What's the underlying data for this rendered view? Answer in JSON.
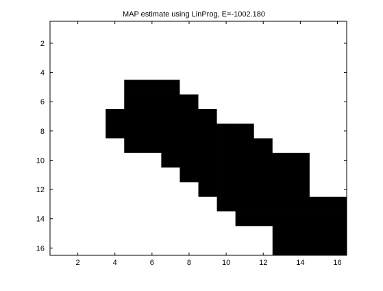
{
  "chart_data": {
    "type": "heatmap",
    "title": "MAP estimate using LinProg, E=-1002.180",
    "xlabel": "",
    "ylabel": "",
    "xlim": [
      0.5,
      16.5
    ],
    "ylim": [
      0.5,
      16.5
    ],
    "y_reversed": true,
    "x_ticks": [
      "2",
      "4",
      "6",
      "8",
      "10",
      "12",
      "14",
      "16"
    ],
    "y_ticks": [
      "2",
      "4",
      "6",
      "8",
      "10",
      "12",
      "14",
      "16"
    ],
    "colormap": {
      "0": "#ffffff",
      "1": "#000000"
    },
    "grid": false,
    "values": [
      [
        0,
        0,
        0,
        0,
        0,
        0,
        0,
        0,
        0,
        0,
        0,
        0,
        0,
        0,
        0,
        0
      ],
      [
        0,
        0,
        0,
        0,
        0,
        0,
        0,
        0,
        0,
        0,
        0,
        0,
        0,
        0,
        0,
        0
      ],
      [
        0,
        0,
        0,
        0,
        0,
        0,
        0,
        0,
        0,
        0,
        0,
        0,
        0,
        0,
        0,
        0
      ],
      [
        0,
        0,
        0,
        0,
        0,
        0,
        0,
        0,
        0,
        0,
        0,
        0,
        0,
        0,
        0,
        0
      ],
      [
        0,
        0,
        0,
        0,
        1,
        1,
        1,
        0,
        0,
        0,
        0,
        0,
        0,
        0,
        0,
        0
      ],
      [
        0,
        0,
        0,
        0,
        1,
        1,
        1,
        1,
        0,
        0,
        0,
        0,
        0,
        0,
        0,
        0
      ],
      [
        0,
        0,
        0,
        1,
        1,
        1,
        1,
        1,
        1,
        0,
        0,
        0,
        0,
        0,
        0,
        0
      ],
      [
        0,
        0,
        0,
        1,
        1,
        1,
        1,
        1,
        1,
        1,
        1,
        0,
        0,
        0,
        0,
        0
      ],
      [
        0,
        0,
        0,
        0,
        1,
        1,
        1,
        1,
        1,
        1,
        1,
        1,
        0,
        0,
        0,
        0
      ],
      [
        0,
        0,
        0,
        0,
        0,
        0,
        1,
        1,
        1,
        1,
        1,
        1,
        1,
        1,
        0,
        0
      ],
      [
        0,
        0,
        0,
        0,
        0,
        0,
        0,
        1,
        1,
        1,
        1,
        1,
        1,
        1,
        0,
        0
      ],
      [
        0,
        0,
        0,
        0,
        0,
        0,
        0,
        0,
        1,
        1,
        1,
        1,
        1,
        1,
        0,
        0
      ],
      [
        0,
        0,
        0,
        0,
        0,
        0,
        0,
        0,
        0,
        1,
        1,
        1,
        1,
        1,
        1,
        1
      ],
      [
        0,
        0,
        0,
        0,
        0,
        0,
        0,
        0,
        0,
        0,
        1,
        1,
        1,
        1,
        1,
        1
      ],
      [
        0,
        0,
        0,
        0,
        0,
        0,
        0,
        0,
        0,
        0,
        0,
        0,
        1,
        1,
        1,
        1
      ],
      [
        0,
        0,
        0,
        0,
        0,
        0,
        0,
        0,
        0,
        0,
        0,
        0,
        1,
        1,
        1,
        1
      ]
    ]
  }
}
